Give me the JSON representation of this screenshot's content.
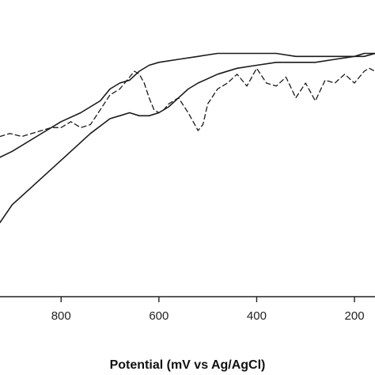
{
  "chart_data": {
    "type": "line",
    "title": "",
    "xlabel": "Potential (mV vs Ag/AgCl)",
    "ylabel": "",
    "x_reversed": true,
    "xlim": [
      925,
      158
    ],
    "ylim": [
      0,
      1
    ],
    "grid": false,
    "legend": "none",
    "xticks": [
      {
        "value": 800,
        "label": "800"
      },
      {
        "value": 600,
        "label": "600"
      },
      {
        "value": 400,
        "label": "400"
      },
      {
        "value": 200,
        "label": "200"
      }
    ],
    "series": [
      {
        "style": "solid",
        "x": [
          925,
          900,
          850,
          800,
          760,
          720,
          700,
          680,
          660,
          640,
          620,
          600,
          560,
          520,
          480,
          440,
          400,
          360,
          320,
          280,
          240,
          200,
          180,
          158
        ],
        "y": [
          0.47,
          0.49,
          0.54,
          0.59,
          0.62,
          0.66,
          0.7,
          0.72,
          0.73,
          0.76,
          0.78,
          0.79,
          0.8,
          0.81,
          0.82,
          0.82,
          0.82,
          0.82,
          0.81,
          0.81,
          0.81,
          0.81,
          0.82,
          0.82
        ]
      },
      {
        "style": "solid",
        "x": [
          925,
          900,
          860,
          820,
          780,
          740,
          700,
          680,
          660,
          640,
          620,
          600,
          580,
          560,
          540,
          520,
          480,
          440,
          400,
          360,
          320,
          280,
          240,
          200,
          180,
          158
        ],
        "y": [
          0.25,
          0.31,
          0.37,
          0.43,
          0.49,
          0.55,
          0.6,
          0.61,
          0.62,
          0.61,
          0.61,
          0.62,
          0.64,
          0.67,
          0.7,
          0.72,
          0.75,
          0.77,
          0.78,
          0.79,
          0.79,
          0.79,
          0.8,
          0.81,
          0.81,
          0.82
        ]
      },
      {
        "style": "dashed",
        "x": [
          925,
          905,
          880,
          860,
          840,
          820,
          800,
          780,
          760,
          740,
          720,
          700,
          680,
          660,
          650,
          640,
          630,
          620,
          610,
          600,
          590,
          580,
          560,
          540,
          520,
          510,
          500,
          480,
          460,
          440,
          420,
          400,
          380,
          360,
          340,
          320,
          300,
          280,
          260,
          240,
          220,
          200,
          180,
          170,
          158
        ],
        "y": [
          0.54,
          0.55,
          0.54,
          0.55,
          0.56,
          0.57,
          0.57,
          0.59,
          0.57,
          0.58,
          0.63,
          0.68,
          0.7,
          0.74,
          0.76,
          0.75,
          0.72,
          0.67,
          0.63,
          0.62,
          0.63,
          0.65,
          0.67,
          0.62,
          0.56,
          0.58,
          0.65,
          0.7,
          0.72,
          0.75,
          0.71,
          0.77,
          0.72,
          0.71,
          0.74,
          0.67,
          0.72,
          0.66,
          0.73,
          0.72,
          0.75,
          0.72,
          0.76,
          0.77,
          0.76
        ]
      }
    ]
  }
}
